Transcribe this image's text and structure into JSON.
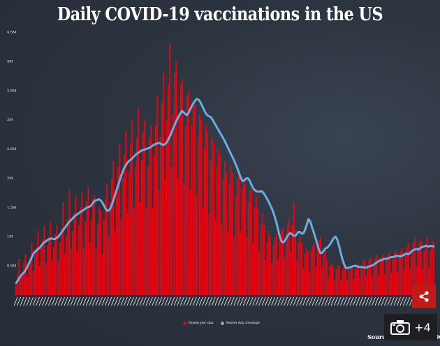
{
  "title": "Daily COVID-19 vaccinations in the US",
  "source": "Source: Bloomberg/CDC",
  "gallery_count": "+4",
  "colors": {
    "bar": "#e30613",
    "line": "#6aaee0",
    "share_bg": "#c11b17"
  },
  "icons": {
    "share": "share-icon",
    "camera": "camera-icon"
  },
  "chart_data": {
    "type": "bar",
    "title": "",
    "xlabel": "",
    "ylabel": "",
    "ylim": [
      0,
      4500000
    ],
    "y_ticks": [
      "0.5M",
      "1M",
      "1.5M",
      "2M",
      "2.5M",
      "3M",
      "3.5M",
      "4M",
      "4.5M"
    ],
    "y_tick_values": [
      500000,
      1000000,
      1500000,
      2000000,
      2500000,
      3000000,
      3500000,
      4000000,
      4500000
    ],
    "legend": {
      "position": "bottom-center",
      "entries": [
        "Doses per day",
        "Seven day average"
      ]
    },
    "grid": false,
    "bar_series_name": "Doses per day",
    "line_series_name": "Seven day average",
    "seven_day_average": [
      210000,
      250000,
      300000,
      340000,
      370000,
      400000,
      450000,
      510000,
      570000,
      630000,
      700000,
      740000,
      760000,
      790000,
      810000,
      850000,
      890000,
      910000,
      930000,
      950000,
      960000,
      970000,
      960000,
      960000,
      980000,
      1000000,
      1040000,
      1080000,
      1120000,
      1160000,
      1200000,
      1240000,
      1270000,
      1300000,
      1330000,
      1360000,
      1380000,
      1400000,
      1420000,
      1440000,
      1460000,
      1480000,
      1500000,
      1510000,
      1520000,
      1560000,
      1600000,
      1620000,
      1630000,
      1640000,
      1620000,
      1580000,
      1530000,
      1470000,
      1440000,
      1450000,
      1500000,
      1580000,
      1670000,
      1760000,
      1850000,
      1940000,
      2030000,
      2110000,
      2180000,
      2230000,
      2270000,
      2300000,
      2320000,
      2350000,
      2380000,
      2410000,
      2430000,
      2450000,
      2470000,
      2480000,
      2490000,
      2500000,
      2510000,
      2520000,
      2540000,
      2560000,
      2580000,
      2590000,
      2600000,
      2600000,
      2580000,
      2570000,
      2580000,
      2610000,
      2660000,
      2720000,
      2790000,
      2860000,
      2930000,
      2990000,
      3050000,
      3100000,
      3150000,
      3130000,
      3100000,
      3080000,
      3120000,
      3180000,
      3240000,
      3290000,
      3330000,
      3360000,
      3340000,
      3300000,
      3240000,
      3180000,
      3120000,
      3080000,
      3060000,
      3050000,
      3010000,
      2960000,
      2910000,
      2860000,
      2810000,
      2760000,
      2710000,
      2660000,
      2600000,
      2540000,
      2480000,
      2420000,
      2360000,
      2300000,
      2230000,
      2160000,
      2080000,
      2000000,
      1950000,
      1960000,
      1990000,
      2000000,
      1970000,
      1900000,
      1840000,
      1800000,
      1780000,
      1770000,
      1770000,
      1780000,
      1760000,
      1720000,
      1670000,
      1620000,
      1560000,
      1500000,
      1430000,
      1340000,
      1240000,
      1120000,
      1000000,
      920000,
      900000,
      930000,
      980000,
      1030000,
      1060000,
      1050000,
      1020000,
      1010000,
      1040000,
      1080000,
      1080000,
      1050000,
      1060000,
      1120000,
      1210000,
      1300000,
      1260000,
      1170000,
      1080000,
      990000,
      890000,
      790000,
      720000,
      720000,
      760000,
      800000,
      810000,
      840000,
      880000,
      930000,
      980000,
      1000000,
      950000,
      850000,
      730000,
      620000,
      530000,
      470000,
      460000,
      470000,
      480000,
      490000,
      500000,
      500000,
      490000,
      480000,
      480000,
      480000,
      470000,
      470000,
      480000,
      490000,
      500000,
      510000,
      530000,
      550000,
      570000,
      590000,
      600000,
      610000,
      620000,
      620000,
      630000,
      640000,
      650000,
      650000,
      660000,
      670000,
      670000,
      660000,
      670000,
      680000,
      700000,
      710000,
      700000,
      720000,
      750000,
      770000,
      780000,
      790000,
      780000,
      800000,
      820000,
      830000,
      840000,
      840000,
      830000,
      840000,
      840000,
      830000
    ],
    "doses_per_day": [
      210000,
      350000,
      620000,
      300000,
      400000,
      550000,
      700000,
      320000,
      500000,
      650000,
      900000,
      420000,
      700000,
      820000,
      1100000,
      500000,
      800000,
      950000,
      1200000,
      550000,
      850000,
      1000000,
      1250000,
      600000,
      820000,
      1050000,
      1200000,
      560000,
      900000,
      1150000,
      1600000,
      700000,
      1000000,
      1300000,
      1800000,
      800000,
      1100000,
      1400000,
      1700000,
      750000,
      1200000,
      1500000,
      1750000,
      820000,
      1250000,
      1600000,
      1850000,
      900000,
      1300000,
      1650000,
      1700000,
      800000,
      1200000,
      1500000,
      1450000,
      700000,
      1300000,
      1650000,
      1900000,
      1000000,
      1600000,
      2000000,
      2300000,
      1100000,
      1800000,
      2200000,
      2600000,
      1300000,
      2000000,
      2400000,
      2800000,
      1400000,
      2100000,
      2600000,
      3000000,
      1500000,
      2200000,
      2700000,
      3200000,
      1600000,
      2300000,
      2800000,
      3000000,
      1500000,
      2200000,
      2700000,
      2900000,
      1500000,
      2400000,
      2900000,
      3400000,
      1800000,
      2700000,
      3300000,
      3800000,
      2000000,
      3000000,
      3600000,
      4300000,
      2200000,
      3100000,
      3800000,
      4000000,
      2000000,
      3100000,
      3600000,
      3700000,
      1900000,
      2900000,
      3400000,
      3500000,
      1800000,
      2900000,
      3300000,
      3300000,
      1700000,
      2700000,
      3100000,
      3000000,
      1500000,
      2500000,
      2900000,
      2800000,
      1400000,
      2300000,
      2700000,
      2600000,
      1300000,
      2200000,
      2500000,
      2400000,
      1200000,
      2000000,
      2300000,
      2100000,
      1100000,
      1900000,
      2200000,
      2100000,
      1000000,
      1700000,
      2000000,
      2100000,
      1100000,
      1800000,
      2000000,
      1900000,
      1000000,
      1600000,
      1800000,
      1800000,
      900000,
      1500000,
      1700000,
      1500000,
      750000,
      1200000,
      1400000,
      1200000,
      600000,
      900000,
      1100000,
      1000000,
      550000,
      850000,
      1000000,
      1050000,
      600000,
      950000,
      1100000,
      1150000,
      650000,
      1050000,
      1200000,
      1300000,
      750000,
      1200000,
      1600000,
      1100000,
      600000,
      900000,
      1000000,
      900000,
      450000,
      700000,
      800000,
      750000,
      400000,
      750000,
      850000,
      900000,
      500000,
      850000,
      950000,
      1000000,
      500000,
      700000,
      800000,
      600000,
      300000,
      500000,
      550000,
      500000,
      250000,
      450000,
      520000,
      500000,
      260000,
      430000,
      500000,
      500000,
      260000,
      420000,
      500000,
      500000,
      280000,
      450000,
      520000,
      550000,
      300000,
      500000,
      580000,
      600000,
      320000,
      520000,
      600000,
      650000,
      330000,
      560000,
      640000,
      680000,
      350000,
      580000,
      660000,
      700000,
      360000,
      600000,
      700000,
      720000,
      380000,
      620000,
      720000,
      760000,
      400000,
      650000,
      750000,
      800000,
      420000,
      700000,
      820000,
      900000,
      450000,
      750000,
      900000,
      1000000,
      480000,
      780000,
      900000,
      950000,
      460000,
      750000,
      880000,
      1000000,
      470000,
      760000,
      880000,
      920000
    ]
  }
}
